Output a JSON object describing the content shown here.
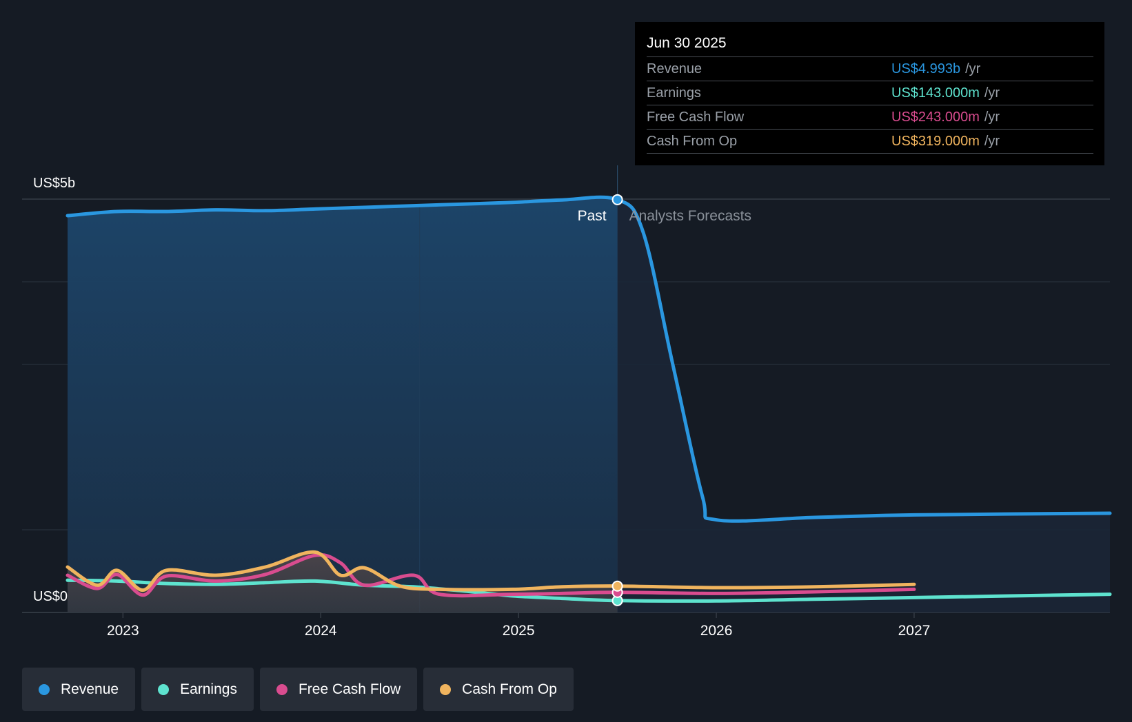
{
  "tooltip": {
    "date": "Jun 30 2025",
    "rows": [
      {
        "label": "Revenue",
        "value": "US$4.993b",
        "unit": "/yr",
        "color": "#2a97e0"
      },
      {
        "label": "Earnings",
        "value": "US$143.000m",
        "unit": "/yr",
        "color": "#5ee3cf"
      },
      {
        "label": "Free Cash Flow",
        "value": "US$243.000m",
        "unit": "/yr",
        "color": "#d94c8f"
      },
      {
        "label": "Cash From Op",
        "value": "US$319.000m",
        "unit": "/yr",
        "color": "#f0b45e"
      }
    ]
  },
  "legend": [
    {
      "label": "Revenue",
      "color": "#2a97e0"
    },
    {
      "label": "Earnings",
      "color": "#5ee3cf"
    },
    {
      "label": "Free Cash Flow",
      "color": "#d94c8f"
    },
    {
      "label": "Cash From Op",
      "color": "#f0b45e"
    }
  ],
  "chart_data": {
    "type": "area",
    "y_axis_labels": [
      "US$5b",
      "US$0"
    ],
    "ylim": [
      0,
      5
    ],
    "y_unit": "US$b",
    "xlim": [
      2022.49,
      2027.99
    ],
    "x_ticks": [
      2023,
      2024,
      2025,
      2026,
      2027
    ],
    "region_labels": {
      "past": "Past",
      "forecast": "Analysts Forecasts"
    },
    "divider_x": 2025.5,
    "grid": true,
    "series": [
      {
        "name": "Revenue",
        "color": "#2a97e0",
        "points": [
          [
            2022.72,
            4.8
          ],
          [
            2022.97,
            4.85
          ],
          [
            2023.22,
            4.85
          ],
          [
            2023.47,
            4.87
          ],
          [
            2023.72,
            4.86
          ],
          [
            2023.97,
            4.88
          ],
          [
            2024.22,
            4.9
          ],
          [
            2024.47,
            4.92
          ],
          [
            2024.72,
            4.94
          ],
          [
            2024.97,
            4.96
          ],
          [
            2025.22,
            4.99
          ],
          [
            2025.5,
            4.993
          ],
          [
            2025.63,
            4.6
          ],
          [
            2025.78,
            3.0
          ],
          [
            2025.93,
            1.4
          ],
          [
            2026.0,
            1.12
          ],
          [
            2026.5,
            1.15
          ],
          [
            2027.0,
            1.18
          ],
          [
            2027.99,
            1.2
          ]
        ]
      },
      {
        "name": "Earnings",
        "color": "#5ee3cf",
        "points": [
          [
            2022.72,
            0.39
          ],
          [
            2022.97,
            0.38
          ],
          [
            2023.22,
            0.35
          ],
          [
            2023.47,
            0.34
          ],
          [
            2023.72,
            0.36
          ],
          [
            2023.97,
            0.38
          ],
          [
            2024.22,
            0.33
          ],
          [
            2024.47,
            0.31
          ],
          [
            2024.72,
            0.26
          ],
          [
            2024.97,
            0.2
          ],
          [
            2025.22,
            0.17
          ],
          [
            2025.5,
            0.143
          ],
          [
            2026.0,
            0.14
          ],
          [
            2026.5,
            0.16
          ],
          [
            2027.0,
            0.18
          ],
          [
            2027.99,
            0.22
          ]
        ]
      },
      {
        "name": "Free Cash Flow",
        "color": "#d94c8f",
        "points": [
          [
            2022.72,
            0.45
          ],
          [
            2022.87,
            0.29
          ],
          [
            2022.97,
            0.46
          ],
          [
            2023.1,
            0.21
          ],
          [
            2023.22,
            0.44
          ],
          [
            2023.47,
            0.38
          ],
          [
            2023.72,
            0.46
          ],
          [
            2023.97,
            0.69
          ],
          [
            2024.1,
            0.6
          ],
          [
            2024.22,
            0.33
          ],
          [
            2024.47,
            0.45
          ],
          [
            2024.6,
            0.22
          ],
          [
            2024.97,
            0.22
          ],
          [
            2025.22,
            0.23
          ],
          [
            2025.5,
            0.243
          ],
          [
            2026.0,
            0.23
          ],
          [
            2026.5,
            0.25
          ],
          [
            2027.0,
            0.28
          ]
        ]
      },
      {
        "name": "Cash From Op",
        "color": "#f0b45e",
        "points": [
          [
            2022.72,
            0.55
          ],
          [
            2022.87,
            0.33
          ],
          [
            2022.97,
            0.51
          ],
          [
            2023.1,
            0.27
          ],
          [
            2023.22,
            0.51
          ],
          [
            2023.47,
            0.45
          ],
          [
            2023.72,
            0.55
          ],
          [
            2023.97,
            0.73
          ],
          [
            2024.1,
            0.45
          ],
          [
            2024.22,
            0.54
          ],
          [
            2024.4,
            0.32
          ],
          [
            2024.6,
            0.28
          ],
          [
            2024.97,
            0.28
          ],
          [
            2025.22,
            0.31
          ],
          [
            2025.5,
            0.319
          ],
          [
            2026.0,
            0.3
          ],
          [
            2026.5,
            0.31
          ],
          [
            2027.0,
            0.34
          ]
        ]
      }
    ]
  }
}
